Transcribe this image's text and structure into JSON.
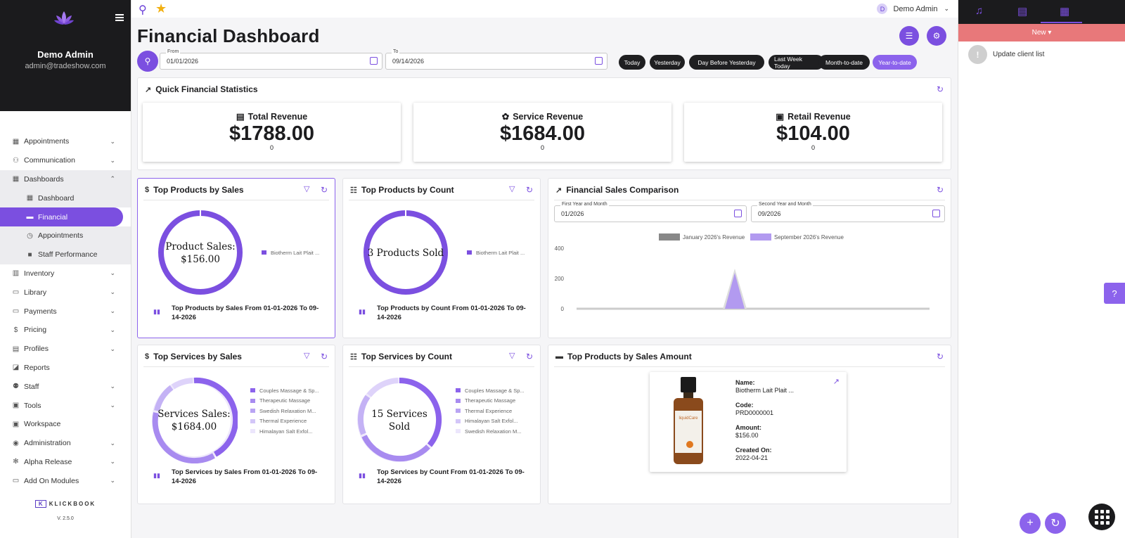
{
  "user": {
    "name": "Demo Admin",
    "email": "admin@tradeshow.com",
    "initial": "D"
  },
  "sidebar": {
    "items": [
      {
        "label": "Appointments",
        "icon": "calendar-icon",
        "chevron": "⌄"
      },
      {
        "label": "Communication",
        "icon": "people-icon",
        "chevron": "⌄"
      },
      {
        "label": "Dashboards",
        "icon": "grid-icon",
        "chevron": "⌃"
      },
      {
        "label": "Dashboard",
        "icon": "grid-icon",
        "chevron": ""
      },
      {
        "label": "Financial",
        "icon": "card-icon",
        "chevron": ""
      },
      {
        "label": "Appointments",
        "icon": "clock-icon",
        "chevron": ""
      },
      {
        "label": "Staff Performance",
        "icon": "briefcase-icon",
        "chevron": ""
      },
      {
        "label": "Inventory",
        "icon": "building-icon",
        "chevron": "⌄"
      },
      {
        "label": "Library",
        "icon": "book-icon",
        "chevron": "⌄"
      },
      {
        "label": "Payments",
        "icon": "card-icon",
        "chevron": "⌄"
      },
      {
        "label": "Pricing",
        "icon": "dollar-icon",
        "chevron": "⌄"
      },
      {
        "label": "Profiles",
        "icon": "id-icon",
        "chevron": "⌄"
      },
      {
        "label": "Reports",
        "icon": "report-icon",
        "chevron": ""
      },
      {
        "label": "Staff",
        "icon": "staff-icon",
        "chevron": "⌄"
      },
      {
        "label": "Tools",
        "icon": "tools-icon",
        "chevron": "⌄"
      },
      {
        "label": "Workspace",
        "icon": "workspace-icon",
        "chevron": ""
      },
      {
        "label": "Administration",
        "icon": "admin-icon",
        "chevron": "⌄"
      },
      {
        "label": "Alpha Release",
        "icon": "snowflake-icon",
        "chevron": "⌄"
      },
      {
        "label": "Add On Modules",
        "icon": "folder-icon",
        "chevron": "⌄"
      }
    ],
    "brand": "KLICKBOOK",
    "version": "V. 2.5.0"
  },
  "page": {
    "title": "Financial Dashboard"
  },
  "filters": {
    "from_label": "From",
    "from_value": "01/01/2026",
    "to_label": "To",
    "to_value": "09/14/2026",
    "chips": [
      "Today",
      "Yesterday",
      "Day Before Yesterday",
      "Last Week Today",
      "Month-to-date",
      "Year-to-date"
    ],
    "selected_chip": "Year-to-date"
  },
  "quick_stats": {
    "title": "Quick Financial Statistics",
    "cards": [
      {
        "label": "Total Revenue",
        "value": "$1788.00",
        "sub": "0",
        "icon": "register-icon"
      },
      {
        "label": "Service Revenue",
        "value": "$1684.00",
        "sub": "0",
        "icon": "lotus-icon"
      },
      {
        "label": "Retail Revenue",
        "value": "$104.00",
        "sub": "0",
        "icon": "boxes-icon"
      }
    ]
  },
  "top_products_sales": {
    "title": "Top Products by Sales",
    "center_line1": "Product Sales:",
    "center_line2": "$156.00",
    "legend": [
      "Biotherm Lait Plait ..."
    ],
    "footer": "Top Products by Sales From 01-01-2026 To 09-14-2026"
  },
  "top_products_count": {
    "title": "Top Products by Count",
    "center_line1": "3 Products Sold",
    "legend": [
      "Biotherm Lait Plait ..."
    ],
    "footer": "Top Products by Count From 01-01-2026 To 09-14-2026"
  },
  "comparison": {
    "title": "Financial Sales Comparison",
    "first_label": "First Year and Month",
    "first_value": "01/2026",
    "second_label": "Second Year and Month",
    "second_value": "09/2026",
    "legend": [
      "January 2026's Revenue",
      "September 2026's Revenue"
    ],
    "yticks": [
      "400",
      "200",
      "0"
    ]
  },
  "top_services_sales": {
    "title": "Top Services by Sales",
    "center_line1": "Services Sales:",
    "center_line2": "$1684.00",
    "legend": [
      "Couples Massage & Sp...",
      "Therapeutic Massage",
      "Swedish Relaxation M...",
      "Thermal Experience",
      "Himalayan Salt Exfol..."
    ],
    "footer": "Top Services by Sales From 01-01-2026 To 09-14-2026"
  },
  "top_services_count": {
    "title": "Top Services by Count",
    "center_line1": "15 Services",
    "center_line2": "Sold",
    "legend": [
      "Couples Massage & Sp...",
      "Therapeutic Massage",
      "Thermal Experience",
      "Himalayan Salt Exfol...",
      "Swedish Relaxation M..."
    ],
    "footer": "Top Services by Count From 01-01-2026 To 09-14-2026"
  },
  "top_products_amount": {
    "title": "Top Products by Sales Amount",
    "name_label": "Name:",
    "name_value": "Biotherm Lait Plait ...",
    "code_label": "Code:",
    "code_value": "PRD0000001",
    "amount_label": "Amount:",
    "amount_value": "$156.00",
    "created_label": "Created On:",
    "created_value": "2022-04-21",
    "bottle_label": "liquidCare"
  },
  "right_panel": {
    "new_label": "New ▾",
    "task": "Update client list",
    "task_icon_text": "!"
  },
  "colors": {
    "accent": "#7b4fe0",
    "dark": "#1b1b1d",
    "new_bar": "#e8787a"
  },
  "chart_data": [
    {
      "type": "pie",
      "title": "Top Products by Sales",
      "categories": [
        "Biotherm Lait Plait ..."
      ],
      "values": [
        156
      ]
    },
    {
      "type": "pie",
      "title": "Top Products by Count",
      "categories": [
        "Biotherm Lait Plait ..."
      ],
      "values": [
        3
      ]
    },
    {
      "type": "area",
      "title": "Financial Sales Comparison",
      "series": [
        {
          "name": "January 2026's Revenue",
          "values": [
            0
          ]
        },
        {
          "name": "September 2026's Revenue",
          "values": [
            0,
            260,
            0
          ]
        }
      ],
      "ylim": [
        0,
        400
      ]
    },
    {
      "type": "pie",
      "title": "Top Services by Sales",
      "categories": [
        "Couples Massage & Sp...",
        "Therapeutic Massage",
        "Swedish Relaxation M...",
        "Thermal Experience",
        "Himalayan Salt Exfol..."
      ]
    },
    {
      "type": "pie",
      "title": "Top Services by Count",
      "categories": [
        "Couples Massage & Sp...",
        "Therapeutic Massage",
        "Thermal Experience",
        "Himalayan Salt Exfol...",
        "Swedish Relaxation M..."
      ]
    }
  ]
}
